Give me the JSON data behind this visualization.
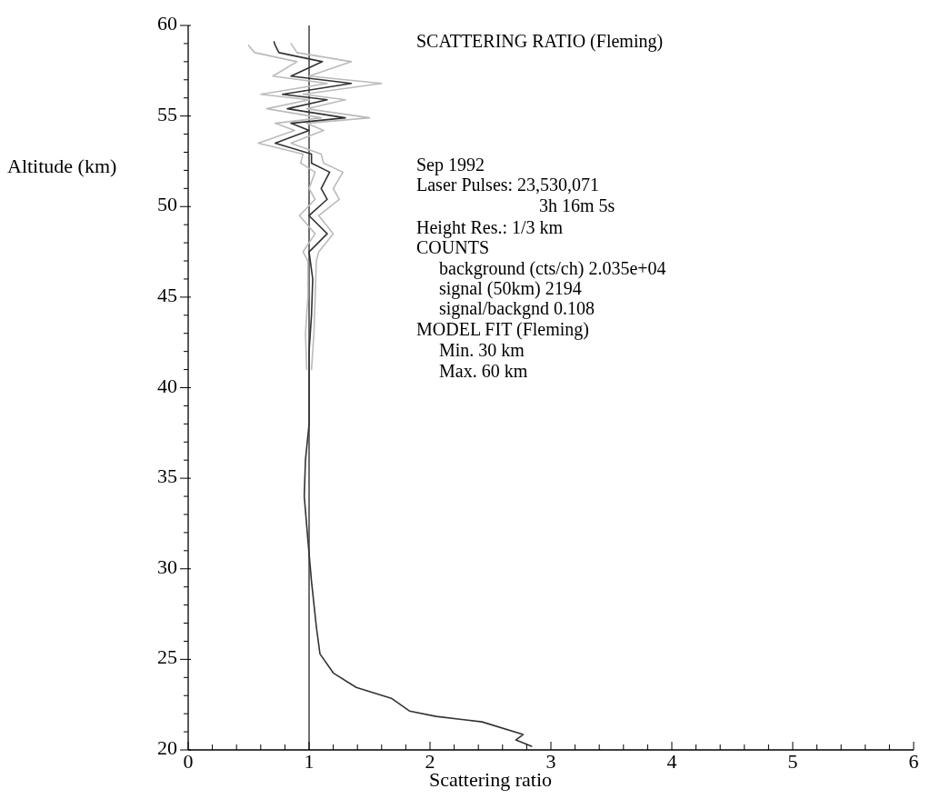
{
  "chart_data": {
    "type": "line",
    "title": "SCATTERING RATIO (Fleming)",
    "xlabel": "Scattering ratio",
    "ylabel": "Altitude (km)",
    "annotations": [
      "Sep 1992",
      "Laser Pulses: 23,530,071",
      "3h 16m 5s",
      "Height Res.: 1/3 km",
      "COUNTS",
      "background (cts/ch) 2.035e+04",
      "signal (50km) 2194",
      "signal/backgnd 0.108",
      "MODEL FIT (Fleming)",
      "Min. 30 km",
      "Max. 60 km"
    ],
    "xlim": [
      0,
      6
    ],
    "ylim": [
      20,
      60
    ],
    "xticks": [
      0,
      {
        "value": 0.2,
        "label": null
      },
      {
        "value": 0.4,
        "label": null
      },
      {
        "value": 0.6,
        "label": null
      },
      {
        "value": 0.8,
        "label": null
      },
      1,
      {
        "value": 1.2,
        "label": null
      },
      {
        "value": 1.4,
        "label": null
      },
      {
        "value": 1.6,
        "label": null
      },
      {
        "value": 1.8,
        "label": null
      },
      2,
      {
        "value": 2.2,
        "label": null
      },
      {
        "value": 2.4,
        "label": null
      },
      {
        "value": 2.6,
        "label": null
      },
      {
        "value": 2.8,
        "label": null
      },
      3,
      {
        "value": 3.2,
        "label": null
      },
      {
        "value": 3.4,
        "label": null
      },
      {
        "value": 3.6,
        "label": null
      },
      {
        "value": 3.8,
        "label": null
      },
      4,
      {
        "value": 4.2,
        "label": null
      },
      {
        "value": 4.4,
        "label": null
      },
      {
        "value": 4.6,
        "label": null
      },
      {
        "value": 4.8,
        "label": null
      },
      5,
      {
        "value": 5.2,
        "label": null
      },
      {
        "value": 5.4,
        "label": null
      },
      {
        "value": 5.6,
        "label": null
      },
      {
        "value": 5.8,
        "label": null
      },
      6
    ],
    "yticks": [
      20,
      {
        "value": 21,
        "label": null
      },
      {
        "value": 22,
        "label": null
      },
      {
        "value": 23,
        "label": null
      },
      {
        "value": 24,
        "label": null
      },
      25,
      {
        "value": 26,
        "label": null
      },
      {
        "value": 27,
        "label": null
      },
      {
        "value": 28,
        "label": null
      },
      {
        "value": 29,
        "label": null
      },
      30,
      {
        "value": 31,
        "label": null
      },
      {
        "value": 32,
        "label": null
      },
      {
        "value": 33,
        "label": null
      },
      {
        "value": 34,
        "label": null
      },
      35,
      {
        "value": 36,
        "label": null
      },
      {
        "value": 37,
        "label": null
      },
      {
        "value": 38,
        "label": null
      },
      {
        "value": 39,
        "label": null
      },
      40,
      {
        "value": 41,
        "label": null
      },
      {
        "value": 42,
        "label": null
      },
      {
        "value": 43,
        "label": null
      },
      {
        "value": 44,
        "label": null
      },
      45,
      {
        "value": 46,
        "label": null
      },
      {
        "value": 47,
        "label": null
      },
      {
        "value": 48,
        "label": null
      },
      {
        "value": 49,
        "label": null
      },
      50,
      {
        "value": 51,
        "label": null
      },
      {
        "value": 52,
        "label": null
      },
      {
        "value": 53,
        "label": null
      },
      {
        "value": 54,
        "label": null
      },
      55,
      {
        "value": 56,
        "label": null
      },
      {
        "value": 57,
        "label": null
      },
      {
        "value": 58,
        "label": null
      },
      {
        "value": 59,
        "label": null
      },
      60
    ],
    "grid": false,
    "marker": "none",
    "line_style": "solid",
    "ref_lines": [
      {
        "axis": "x",
        "value": 1,
        "color": "#222222"
      }
    ],
    "series": [
      {
        "color": "#bbbbbb",
        "x": [
          1.02,
          1.04,
          1.05,
          1.06,
          1.08,
          1.2,
          1.08,
          1.25,
          1.2,
          1.28,
          1.12,
          1.1,
          0.85,
          1.12,
          0.98,
          1.5,
          0.98,
          1.3,
          0.95,
          1.6,
          1.0,
          1.35,
          0.9,
          0.85
        ],
        "values": [
          41,
          43,
          45,
          47,
          47.5,
          48.5,
          49.5,
          50.4,
          51,
          51.9,
          52.4,
          52.9,
          53.5,
          54.2,
          54.6,
          54.9,
          55.4,
          55.9,
          56.2,
          56.8,
          57.2,
          58.0,
          58.5,
          59.0
        ]
      },
      {
        "color": "#bbbbbb",
        "x": [
          0.98,
          0.97,
          0.99,
          0.99,
          0.95,
          1.05,
          0.92,
          1.05,
          1.0,
          1.05,
          0.93,
          0.95,
          0.58,
          0.88,
          0.72,
          1.1,
          0.65,
          1.0,
          0.6,
          1.15,
          0.7,
          0.9,
          0.55,
          0.5
        ],
        "values": [
          41,
          43,
          45,
          47,
          47.5,
          48.5,
          49.5,
          50.4,
          51,
          51.9,
          52.4,
          52.9,
          53.5,
          54.2,
          54.6,
          54.9,
          55.4,
          55.9,
          56.2,
          56.8,
          57.2,
          58.0,
          58.5,
          58.9
        ]
      },
      {
        "color": "#333333",
        "x": [
          2.84,
          2.71,
          2.77,
          2.43,
          2.05,
          1.83,
          1.68,
          1.39,
          1.2,
          1.09,
          1.06,
          1.02,
          0.99,
          0.96,
          0.97,
          1.0,
          1.0,
          1.02,
          1.03,
          1.0,
          1.15,
          1.0,
          1.15,
          1.1,
          1.17,
          1.02,
          1.02,
          0.72,
          1.0,
          0.85,
          1.3,
          0.82,
          1.15,
          0.78,
          1.35,
          0.85,
          1.11,
          0.75,
          0.72,
          0.71
        ],
        "values": [
          20.2,
          20.55,
          20.85,
          21.55,
          21.85,
          22.15,
          22.85,
          23.45,
          24.25,
          25.3,
          26.8,
          29.3,
          31.6,
          34,
          36,
          38,
          42,
          44,
          46,
          47.5,
          48.5,
          49.5,
          50.4,
          51,
          51.9,
          52.4,
          52.9,
          53.5,
          54.2,
          54.6,
          54.9,
          55.4,
          55.9,
          56.2,
          56.8,
          57.2,
          58.0,
          58.5,
          58.9,
          59.1
        ]
      }
    ]
  }
}
